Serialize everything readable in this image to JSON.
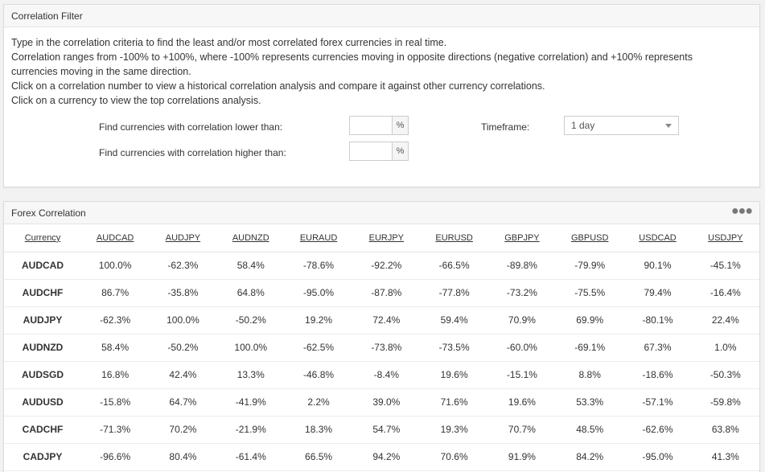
{
  "filter": {
    "title": "Correlation Filter",
    "description": [
      "Type in the correlation criteria to find the least and/or most correlated forex currencies in real time.",
      "Correlation ranges from -100% to +100%, where -100% represents currencies moving in opposite directions (negative correlation) and +100% represents",
      "currencies moving in the same direction.",
      "Click on a correlation number to view a historical correlation analysis and compare it against other currency correlations.",
      "Click on a currency to view the top correlations analysis."
    ],
    "lower_label": "Find currencies with correlation lower than:",
    "higher_label": "Find currencies with correlation higher than:",
    "lower_value": "",
    "higher_value": "",
    "percent_symbol": "%",
    "timeframe_label": "Timeframe:",
    "timeframe_value": "1 day"
  },
  "correlation": {
    "title": "Forex Correlation",
    "menu_icon": "more-dots-icon",
    "header_label": "Currency",
    "columns": [
      "AUDCAD",
      "AUDJPY",
      "AUDNZD",
      "EURAUD",
      "EURJPY",
      "EURUSD",
      "GBPJPY",
      "GBPUSD",
      "USDCAD",
      "USDJPY"
    ],
    "rows": [
      {
        "currency": "AUDCAD",
        "values": [
          "100.0%",
          "-62.3%",
          "58.4%",
          "-78.6%",
          "-92.2%",
          "-66.5%",
          "-89.8%",
          "-79.9%",
          "90.1%",
          "-45.1%"
        ]
      },
      {
        "currency": "AUDCHF",
        "values": [
          "86.7%",
          "-35.8%",
          "64.8%",
          "-95.0%",
          "-87.8%",
          "-77.8%",
          "-73.2%",
          "-75.5%",
          "79.4%",
          "-16.4%"
        ]
      },
      {
        "currency": "AUDJPY",
        "values": [
          "-62.3%",
          "100.0%",
          "-50.2%",
          "19.2%",
          "72.4%",
          "59.4%",
          "70.9%",
          "69.9%",
          "-80.1%",
          "22.4%"
        ]
      },
      {
        "currency": "AUDNZD",
        "values": [
          "58.4%",
          "-50.2%",
          "100.0%",
          "-62.5%",
          "-73.8%",
          "-73.5%",
          "-60.0%",
          "-69.1%",
          "67.3%",
          "1.0%"
        ]
      },
      {
        "currency": "AUDSGD",
        "values": [
          "16.8%",
          "42.4%",
          "13.3%",
          "-46.8%",
          "-8.4%",
          "19.6%",
          "-15.1%",
          "8.8%",
          "-18.6%",
          "-50.3%"
        ]
      },
      {
        "currency": "AUDUSD",
        "values": [
          "-15.8%",
          "64.7%",
          "-41.9%",
          "2.2%",
          "39.0%",
          "71.6%",
          "19.6%",
          "53.3%",
          "-57.1%",
          "-59.8%"
        ]
      },
      {
        "currency": "CADCHF",
        "values": [
          "-71.3%",
          "70.2%",
          "-21.9%",
          "18.3%",
          "54.7%",
          "19.3%",
          "70.7%",
          "48.5%",
          "-62.6%",
          "63.8%"
        ]
      },
      {
        "currency": "CADJPY",
        "values": [
          "-96.6%",
          "80.4%",
          "-61.4%",
          "66.5%",
          "94.2%",
          "70.6%",
          "91.9%",
          "84.2%",
          "-95.0%",
          "41.3%"
        ]
      }
    ]
  }
}
